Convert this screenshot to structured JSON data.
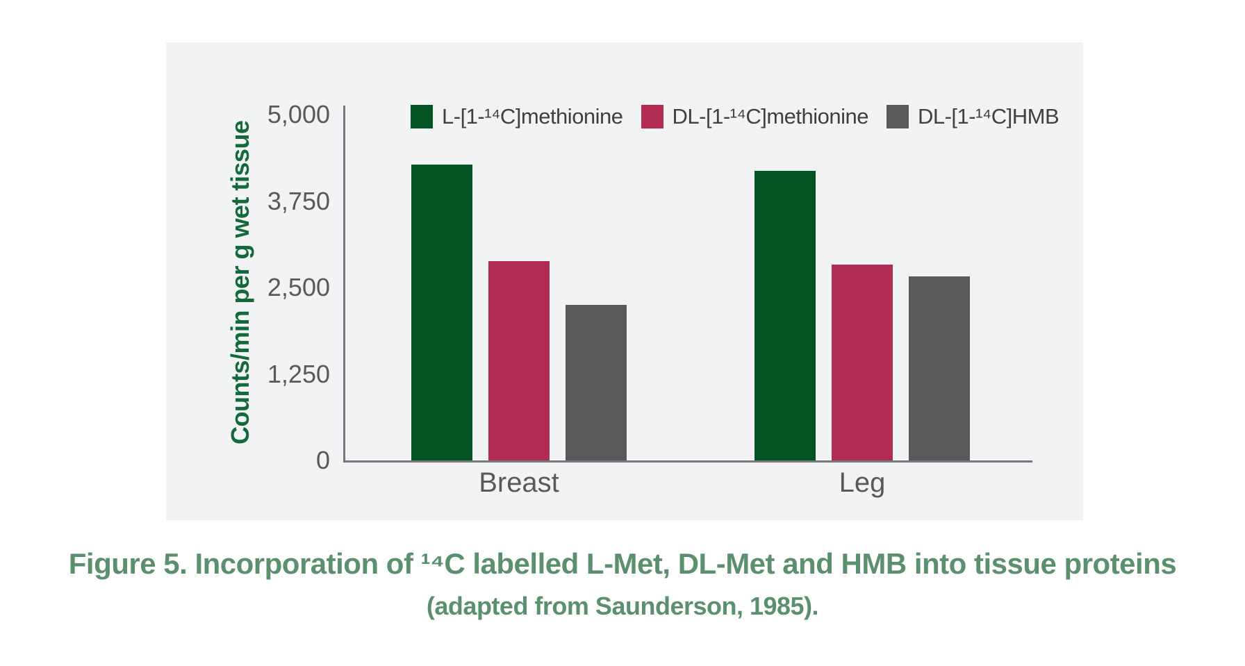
{
  "figure": {
    "caption_line1": "Figure 5. Incorporation of ¹⁴C labelled L-Met, DL-Met and HMB into tissue proteins",
    "caption_line2": "(adapted from Saunderson, 1985).",
    "caption_color": "#5b906e"
  },
  "chart_data": {
    "type": "bar",
    "title": "",
    "xlabel": "",
    "ylabel": "Counts/min per g wet tissue",
    "ylim": [
      0,
      5000
    ],
    "yticks": [
      0,
      1250,
      2500,
      3750,
      5000
    ],
    "ytick_labels": [
      "0",
      "1,250",
      "2,500",
      "3,750",
      "5,000"
    ],
    "grid": false,
    "legend_position": "top",
    "categories": [
      "Breast",
      "Leg"
    ],
    "series": [
      {
        "name": "L-[1-¹⁴C]methionine",
        "color": "#035423",
        "values": [
          4280,
          4190
        ]
      },
      {
        "name": "DL-[1-¹⁴C]methionine",
        "color": "#b02c52",
        "values": [
          2880,
          2830
        ]
      },
      {
        "name": "DL-[1-¹⁴C]HMB",
        "color": "#58595b",
        "values": [
          2250,
          2660
        ]
      }
    ],
    "colors": {
      "panel_background": "#f2f3f4",
      "axis": "#76777a",
      "tick_label": "#58595b",
      "ylabel": "#14693a",
      "legend_text": "#3f4042"
    }
  }
}
